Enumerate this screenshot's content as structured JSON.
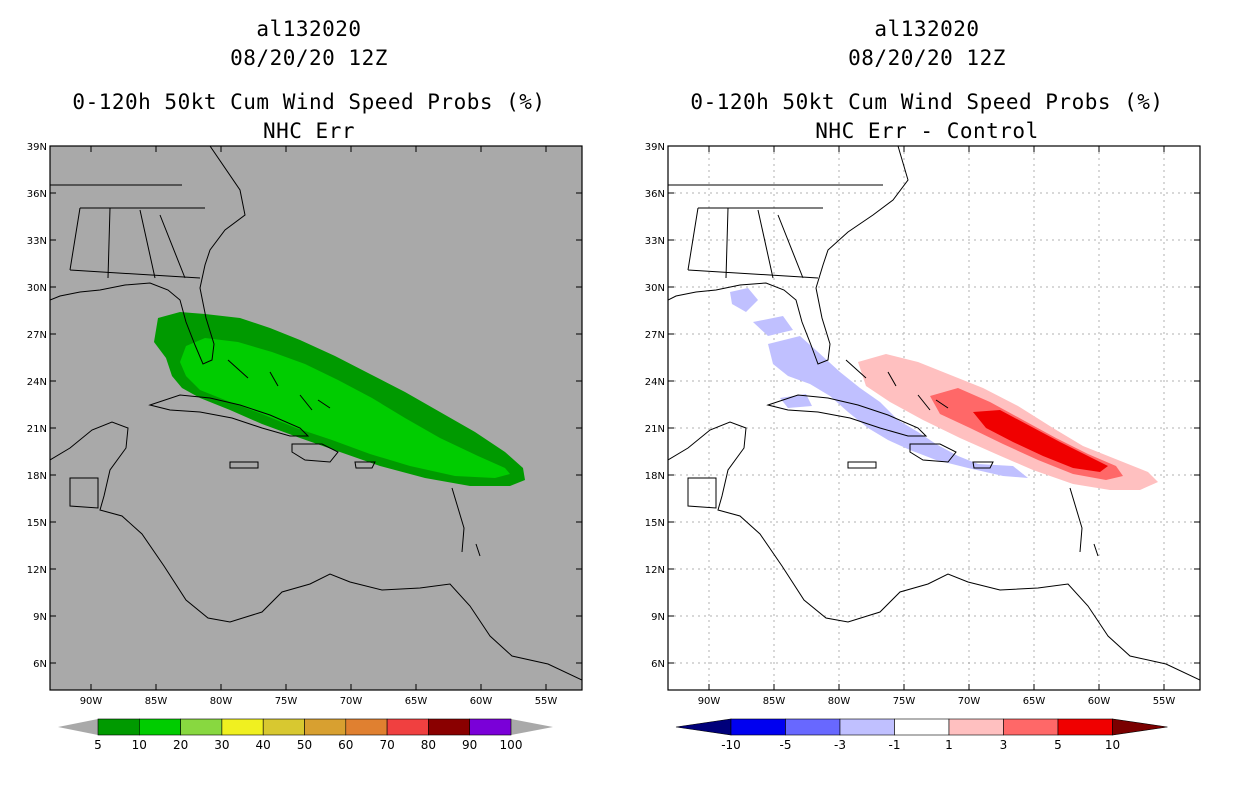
{
  "lat_labels": [
    "39N",
    "36N",
    "33N",
    "30N",
    "27N",
    "24N",
    "21N",
    "18N",
    "15N",
    "12N",
    "9N",
    "6N"
  ],
  "lon_labels": [
    "90W",
    "85W",
    "80W",
    "75W",
    "70W",
    "65W",
    "60W",
    "55W"
  ],
  "left": {
    "title": {
      "storm": "al132020",
      "datetime": "08/20/20 12Z",
      "product": "0-120h 50kt Cum Wind Speed Probs (%)",
      "subtitle": "NHC Err"
    },
    "map_background": "#a9a9a9",
    "colorbar": {
      "labels": [
        "5",
        "10",
        "20",
        "30",
        "40",
        "50",
        "60",
        "70",
        "80",
        "90",
        "100"
      ],
      "colors": [
        "#009a00",
        "#00cc00",
        "#88d840",
        "#f0f020",
        "#d8c830",
        "#d8a030",
        "#e08030",
        "#f04040",
        "#8a0000",
        "#7a00d8"
      ]
    }
  },
  "right": {
    "title": {
      "storm": "al132020",
      "datetime": "08/20/20 12Z",
      "product": "0-120h 50kt Cum Wind Speed Probs (%)",
      "subtitle": "NHC Err - Control"
    },
    "map_background": "#ffffff",
    "colorbar": {
      "labels": [
        "-10",
        "-5",
        "-3",
        "-1",
        "1",
        "3",
        "5",
        "10"
      ],
      "colors": [
        "#00007a",
        "#0000f0",
        "#6868ff",
        "#c0c0ff",
        "#ffffff",
        "#ffc0c0",
        "#ff6868",
        "#f00000",
        "#7a0000"
      ]
    }
  }
}
